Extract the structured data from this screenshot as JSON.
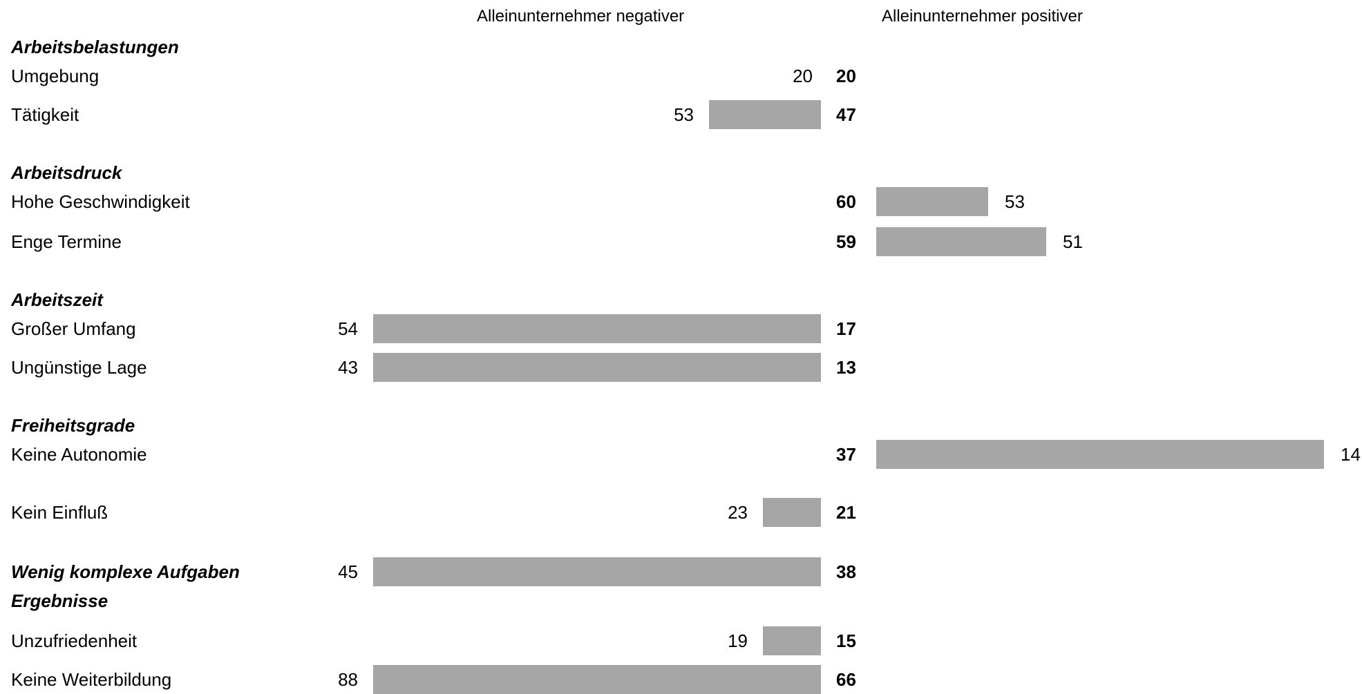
{
  "chart_data": {
    "type": "bar",
    "series": [
      {
        "name": "Alleinunternehmer negativer",
        "direction": "left"
      },
      {
        "name": "Alleinunternehmer positiver",
        "direction": "right"
      }
    ],
    "rows": [
      {
        "label": "Arbeitsbelastungen",
        "kind": "section"
      },
      {
        "label": "Umgebung",
        "kind": "item",
        "center": "20",
        "side": "negative",
        "value": "20"
      },
      {
        "label": "Tätigkeit",
        "kind": "item",
        "center": "47",
        "side": "negative",
        "value": "53"
      },
      {
        "label": "Arbeitsdruck",
        "kind": "section"
      },
      {
        "label": "Hohe Geschwindigkeit",
        "kind": "item",
        "center": "60",
        "side": "positive",
        "value": "53"
      },
      {
        "label": "Enge Termine",
        "kind": "item",
        "center": "59",
        "side": "positive",
        "value": "51"
      },
      {
        "label": "Arbeitszeit",
        "kind": "section"
      },
      {
        "label": "Großer Umfang",
        "kind": "item",
        "center": "17",
        "side": "negative",
        "value": "54"
      },
      {
        "label": "Ungünstige Lage",
        "kind": "item",
        "center": "13",
        "side": "negative",
        "value": "43"
      },
      {
        "label": "Freiheitsgrade",
        "kind": "section"
      },
      {
        "label": "Keine Autonomie",
        "kind": "item",
        "center": "37",
        "side": "positive",
        "value": "14"
      },
      {
        "label": "Kein Einfluß",
        "kind": "item",
        "center": "21",
        "side": "negative",
        "value": "23"
      },
      {
        "label": "Wenig komplexe Aufgaben",
        "kind": "section-item",
        "center": "38",
        "side": "negative",
        "value": "45"
      },
      {
        "label": "Ergebnisse",
        "kind": "section"
      },
      {
        "label": "Unzufriedenheit",
        "kind": "item",
        "center": "15",
        "side": "negative",
        "value": "19"
      },
      {
        "label": "Keine Weiterbildung",
        "kind": "item",
        "center": "66",
        "side": "negative",
        "value": "88"
      }
    ],
    "bar_fraction": {
      "Tätigkeit": 0.25,
      "Hohe Geschwindigkeit": 0.25,
      "Enge Termine": 0.38,
      "Großer Umfang": 1.0,
      "Ungünstige Lage": 1.0,
      "Keine Autonomie": 1.0,
      "Kein Einfluß": 0.13,
      "Wenig komplexe Aufgaben": 1.0,
      "Unzufriedenheit": 0.13,
      "Keine Weiterbildung": 1.0
    },
    "colors": {
      "bar": "#a6a6a6",
      "text": "#000000"
    }
  }
}
